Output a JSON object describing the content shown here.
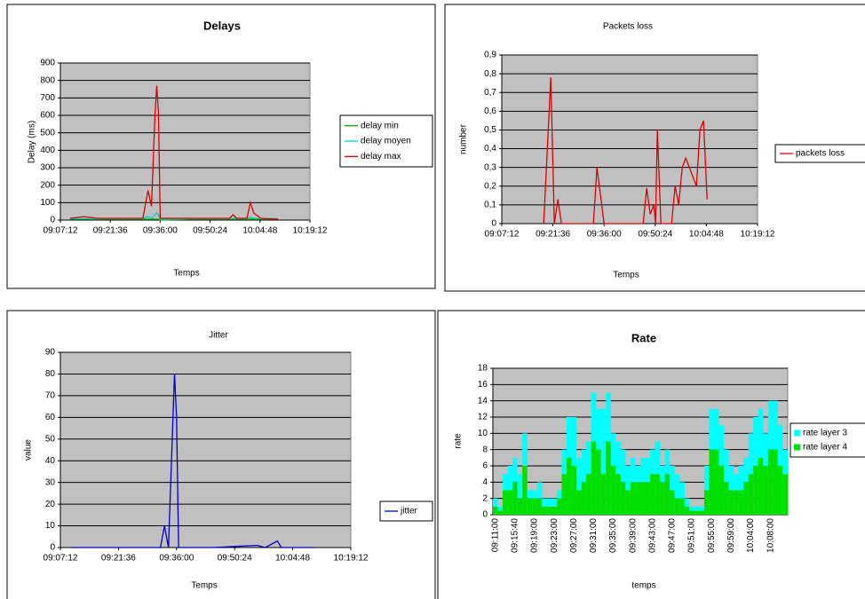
{
  "chart_data": [
    {
      "type": "line",
      "title": "Delays",
      "x_label": "Temps",
      "y_label": "Delay (ms)",
      "x": [
        "09:10:00",
        "09:14:00",
        "09:18:00",
        "09:25:00",
        "09:31:00",
        "09:32:30",
        "09:33:30",
        "09:34:30",
        "09:35:00",
        "09:35:30",
        "09:36:00",
        "09:45:00",
        "09:56:00",
        "09:57:00",
        "09:58:00",
        "10:01:00",
        "10:02:00",
        "10:03:00",
        "10:05:00",
        "10:10:00"
      ],
      "series": [
        {
          "name": "delay min",
          "color": "#00b000",
          "values": [
            5,
            5,
            5,
            5,
            5,
            5,
            5,
            5,
            5,
            5,
            0,
            5,
            5,
            5,
            5,
            5,
            5,
            5,
            5,
            5
          ]
        },
        {
          "name": "delay moyen",
          "color": "#00cccc",
          "values": [
            8,
            8,
            8,
            8,
            8,
            20,
            10,
            30,
            40,
            30,
            5,
            8,
            8,
            10,
            8,
            8,
            15,
            10,
            8,
            8
          ]
        },
        {
          "name": "delay max",
          "color": "#dd0000",
          "values": [
            10,
            20,
            10,
            10,
            10,
            170,
            80,
            600,
            770,
            620,
            10,
            10,
            10,
            30,
            10,
            10,
            100,
            40,
            10,
            5
          ]
        }
      ],
      "xlim": [
        "09:07:12",
        "10:19:12"
      ],
      "xticks": [
        "09:07:12",
        "09:21:36",
        "09:36:00",
        "09:50:24",
        "10:04:48",
        "10:19:12"
      ],
      "ylim": [
        0,
        900
      ],
      "yticks": [
        0,
        100,
        200,
        300,
        400,
        500,
        600,
        700,
        800,
        900
      ],
      "grid": true,
      "legend": "right"
    },
    {
      "type": "line",
      "title": "Packets loss",
      "x_label": "Temps",
      "y_label": "number",
      "x": [
        "09:19:00",
        "09:21:00",
        "09:22:00",
        "09:23:00",
        "09:24:00",
        "09:33:00",
        "09:34:00",
        "09:36:00",
        "09:47:00",
        "09:48:00",
        "09:49:00",
        "09:50:00",
        "09:50:30",
        "09:51:00",
        "09:52:00",
        "09:55:00",
        "09:56:00",
        "09:57:00",
        "09:58:00",
        "09:59:00",
        "10:02:00",
        "10:03:00",
        "10:04:00",
        "10:05:00"
      ],
      "series": [
        {
          "name": "packets loss",
          "color": "#dd0000",
          "values": [
            0,
            0.78,
            0,
            0.13,
            0,
            0,
            0.3,
            0,
            0,
            0.19,
            0.05,
            0.1,
            0,
            0.5,
            0,
            0,
            0.2,
            0.1,
            0.3,
            0.35,
            0.2,
            0.5,
            0.55,
            0.13
          ]
        }
      ],
      "xlim": [
        "09:07:12",
        "10:19:12"
      ],
      "xticks": [
        "09:07:12",
        "09:21:36",
        "09:36:00",
        "09:50:24",
        "10:04:48",
        "10:19:12"
      ],
      "ylim": [
        0,
        0.9
      ],
      "yticks": [
        0,
        {
          "value": 0.1,
          "label": "0,1"
        },
        {
          "value": 0.2,
          "label": "0,2"
        },
        {
          "value": 0.3,
          "label": "0,3"
        },
        {
          "value": 0.4,
          "label": "0,4"
        },
        {
          "value": 0.5,
          "label": "0,5"
        },
        {
          "value": 0.6,
          "label": "0,6"
        },
        {
          "value": 0.7,
          "label": "0,7"
        },
        {
          "value": 0.8,
          "label": "0,8"
        },
        {
          "value": 0.9,
          "label": "0,9"
        }
      ],
      "grid": true,
      "legend": "right"
    },
    {
      "type": "line",
      "title": "Jitter",
      "x_label": "Temps",
      "y_label": "value",
      "x": [
        "09:10:00",
        "09:32:00",
        "09:33:00",
        "09:34:00",
        "09:35:30",
        "09:36:00",
        "09:36:30",
        "09:45:00",
        "09:56:00",
        "09:58:00",
        "10:01:00",
        "10:02:00",
        "10:10:00"
      ],
      "series": [
        {
          "name": "jitter",
          "color": "#0000cc",
          "values": [
            0,
            0,
            10,
            0,
            80,
            60,
            0,
            0,
            1,
            0,
            3,
            0,
            0
          ]
        }
      ],
      "xlim": [
        "09:07:12",
        "10:19:12"
      ],
      "xticks": [
        "09:07:12",
        "09:21:36",
        "09:36:00",
        "09:50:24",
        "10:04:48",
        "10:19:12"
      ],
      "ylim": [
        0,
        90
      ],
      "yticks": [
        0,
        10,
        20,
        30,
        40,
        50,
        60,
        70,
        80,
        90
      ],
      "grid": true,
      "legend": "right"
    },
    {
      "type": "stacked_bar",
      "title": "Rate",
      "x_label": "temps",
      "y_label": "rate",
      "categories": [
        "09:11:00",
        null,
        null,
        null,
        "09:15:40",
        null,
        null,
        null,
        "09:19:00",
        null,
        null,
        null,
        "09:23:00",
        null,
        null,
        null,
        "09:27:00",
        null,
        null,
        null,
        "09:31:00",
        null,
        null,
        null,
        "09:35:00",
        null,
        null,
        null,
        "09:39:00",
        null,
        null,
        null,
        "09:43:00",
        null,
        null,
        null,
        "09:47:00",
        null,
        null,
        null,
        "09:51:00",
        null,
        null,
        null,
        "09:55:00",
        null,
        null,
        null,
        "09:59:00",
        null,
        null,
        null,
        "10:04:00",
        null,
        null,
        null,
        "10:08:00",
        null,
        null,
        null
      ],
      "series": [
        {
          "name": "rate layer 3",
          "color": "#00ffff",
          "values": [
            1,
            0.5,
            2,
            3,
            3,
            3,
            4,
            1,
            1,
            2,
            1,
            1,
            1,
            1,
            3,
            5,
            6,
            4,
            4,
            4,
            6,
            5,
            8,
            6,
            4,
            4,
            4,
            3,
            3,
            2,
            3,
            3,
            3,
            4,
            2,
            3,
            3,
            3,
            2,
            1,
            0.5,
            0.5,
            0.5,
            3,
            5,
            5,
            5,
            4,
            3,
            2,
            3,
            3,
            5,
            6,
            6,
            4,
            6,
            6,
            5,
            3
          ]
        },
        {
          "name": "rate layer 4",
          "color": "#00e000",
          "values": [
            1,
            0.5,
            3,
            3,
            4,
            2,
            6,
            2,
            2,
            2,
            1,
            1,
            1,
            2,
            5,
            7,
            6,
            3,
            4,
            5,
            9,
            8,
            5,
            9,
            6,
            5,
            4,
            3,
            4,
            4,
            4,
            4,
            5,
            5,
            4,
            5,
            3,
            2,
            2,
            1,
            0.5,
            0.5,
            0.5,
            3,
            8,
            8,
            6,
            4,
            3,
            3,
            3,
            4,
            5,
            6,
            7,
            6,
            8,
            8,
            6,
            5
          ]
        }
      ],
      "ylim": [
        0,
        18
      ],
      "yticks": [
        0,
        2,
        4,
        6,
        8,
        10,
        12,
        14,
        16,
        18
      ],
      "grid": true,
      "legend": "right"
    }
  ]
}
